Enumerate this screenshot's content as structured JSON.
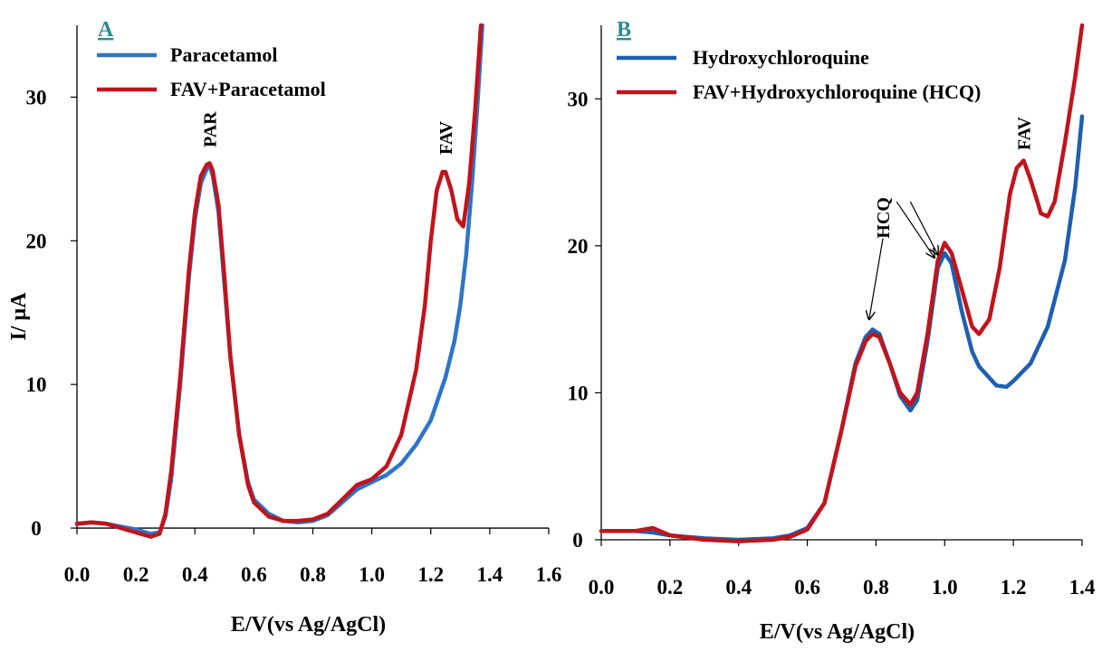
{
  "chart_data": [
    {
      "type": "line",
      "panel_label": "A",
      "xlabel": "E/V(vs Ag/AgCl)",
      "ylabel": "I/ µA",
      "xlim": [
        0.0,
        1.6
      ],
      "ylim": [
        -0.5,
        35
      ],
      "x_ticks": [
        "0.0",
        "0.2",
        "0.4",
        "0.6",
        "0.8",
        "1.0",
        "1.2",
        "1.4",
        "1.6"
      ],
      "y_ticks": [
        "0",
        "10",
        "20",
        "30"
      ],
      "grid": false,
      "legend_position": "top-left",
      "colors": {
        "Paracetamol": "#2E75C8",
        "FAV+Paracetamol": "#C0141C",
        "panel_label": "#2E8B8B"
      },
      "series": [
        {
          "name": "Paracetamol",
          "x": [
            0.0,
            0.05,
            0.1,
            0.15,
            0.2,
            0.25,
            0.28,
            0.3,
            0.32,
            0.35,
            0.38,
            0.4,
            0.42,
            0.44,
            0.45,
            0.46,
            0.48,
            0.5,
            0.52,
            0.55,
            0.58,
            0.6,
            0.65,
            0.7,
            0.75,
            0.8,
            0.85,
            0.9,
            0.95,
            1.0,
            1.05,
            1.1,
            1.15,
            1.2,
            1.25,
            1.28,
            1.3,
            1.32,
            1.34,
            1.36,
            1.375
          ],
          "y": [
            0.3,
            0.4,
            0.3,
            0.1,
            -0.1,
            -0.4,
            -0.3,
            0.8,
            3.5,
            10.0,
            17.5,
            21.5,
            24.0,
            25.0,
            25.2,
            24.6,
            22.0,
            17.0,
            12.0,
            6.5,
            3.2,
            2.0,
            1.0,
            0.5,
            0.4,
            0.5,
            0.9,
            1.8,
            2.7,
            3.2,
            3.7,
            4.5,
            5.8,
            7.5,
            10.5,
            13.0,
            15.5,
            19.0,
            24.0,
            30.0,
            35.0
          ]
        },
        {
          "name": "FAV+Paracetamol",
          "x": [
            0.0,
            0.05,
            0.1,
            0.15,
            0.2,
            0.25,
            0.28,
            0.3,
            0.32,
            0.35,
            0.38,
            0.4,
            0.42,
            0.44,
            0.45,
            0.46,
            0.48,
            0.5,
            0.52,
            0.55,
            0.58,
            0.6,
            0.65,
            0.7,
            0.75,
            0.8,
            0.85,
            0.9,
            0.95,
            1.0,
            1.05,
            1.1,
            1.15,
            1.18,
            1.2,
            1.22,
            1.24,
            1.25,
            1.27,
            1.29,
            1.31,
            1.33,
            1.35,
            1.37
          ],
          "y": [
            0.3,
            0.4,
            0.3,
            0.0,
            -0.3,
            -0.6,
            -0.4,
            1.0,
            4.0,
            10.5,
            18.0,
            22.0,
            24.5,
            25.3,
            25.4,
            24.9,
            22.5,
            17.5,
            12.0,
            6.5,
            3.0,
            1.8,
            0.8,
            0.5,
            0.5,
            0.6,
            1.0,
            2.0,
            3.0,
            3.4,
            4.3,
            6.5,
            11.0,
            15.5,
            20.0,
            23.5,
            24.8,
            24.8,
            23.5,
            21.5,
            21.0,
            24.0,
            29.0,
            35.0
          ]
        }
      ],
      "annotations": [
        {
          "text": "PAR",
          "x": 0.45,
          "y": 26.5,
          "rotation": "vertical"
        },
        {
          "text": "FAV",
          "x": 1.25,
          "y": 26.0,
          "rotation": "vertical"
        }
      ]
    },
    {
      "type": "line",
      "panel_label": "B",
      "xlabel": "E/V(vs Ag/AgCl)",
      "ylabel": "",
      "xlim": [
        0.0,
        1.4
      ],
      "ylim": [
        0,
        35
      ],
      "x_ticks": [
        "0.0",
        "0.2",
        "0.4",
        "0.6",
        "0.8",
        "1.0",
        "1.2",
        "1.4"
      ],
      "y_ticks": [
        "0",
        "10",
        "20",
        "30"
      ],
      "grid": false,
      "legend_position": "top-left",
      "colors": {
        "Hydroxychloroquine": "#1F5FAF",
        "FAV+Hydroxychloroquine (HCQ)": "#C0141C",
        "panel_label": "#2E8B8B"
      },
      "series": [
        {
          "name": "Hydroxychloroquine",
          "x": [
            0.0,
            0.1,
            0.15,
            0.2,
            0.3,
            0.4,
            0.5,
            0.55,
            0.6,
            0.65,
            0.7,
            0.74,
            0.77,
            0.79,
            0.81,
            0.84,
            0.87,
            0.9,
            0.92,
            0.95,
            0.98,
            1.0,
            1.02,
            1.05,
            1.08,
            1.1,
            1.15,
            1.18,
            1.2,
            1.25,
            1.3,
            1.35,
            1.38,
            1.4
          ],
          "y": [
            0.6,
            0.6,
            0.5,
            0.3,
            0.1,
            0.0,
            0.1,
            0.3,
            0.8,
            2.5,
            7.5,
            12.0,
            13.8,
            14.3,
            14.0,
            12.0,
            9.8,
            8.8,
            9.5,
            13.5,
            18.5,
            19.5,
            18.8,
            15.5,
            12.8,
            11.8,
            10.5,
            10.4,
            10.8,
            12.0,
            14.5,
            19.0,
            24.0,
            28.8
          ]
        },
        {
          "name": "FAV+Hydroxychloroquine (HCQ)",
          "x": [
            0.0,
            0.1,
            0.15,
            0.2,
            0.3,
            0.4,
            0.5,
            0.55,
            0.6,
            0.65,
            0.7,
            0.74,
            0.77,
            0.79,
            0.81,
            0.84,
            0.87,
            0.9,
            0.92,
            0.95,
            0.98,
            1.0,
            1.02,
            1.05,
            1.08,
            1.1,
            1.13,
            1.16,
            1.19,
            1.21,
            1.23,
            1.25,
            1.27,
            1.28,
            1.3,
            1.32,
            1.35,
            1.38,
            1.4
          ],
          "y": [
            0.6,
            0.6,
            0.8,
            0.3,
            0.0,
            -0.1,
            0.0,
            0.2,
            0.7,
            2.5,
            7.5,
            11.8,
            13.5,
            14.0,
            13.8,
            12.0,
            10.0,
            9.2,
            10.0,
            14.0,
            19.0,
            20.2,
            19.5,
            17.0,
            14.5,
            14.0,
            15.0,
            18.5,
            23.5,
            25.3,
            25.8,
            24.5,
            23.0,
            22.2,
            22.0,
            23.0,
            27.0,
            31.5,
            35.0
          ]
        }
      ],
      "annotations": [
        {
          "text": "HCQ",
          "x": 0.82,
          "y": 20.5,
          "rotation": "vertical"
        },
        {
          "text": "FAV",
          "x": 1.23,
          "y": 26.5,
          "rotation": "vertical"
        }
      ],
      "arrows": [
        {
          "from_x": 0.82,
          "from_y": 20.5,
          "to_x": 0.78,
          "to_y": 15.0
        },
        {
          "from_x": 0.86,
          "from_y": 23.0,
          "to_x": 0.97,
          "to_y": 19.2
        },
        {
          "from_x": 0.9,
          "from_y": 23.0,
          "to_x": 0.98,
          "to_y": 19.4
        }
      ]
    }
  ]
}
